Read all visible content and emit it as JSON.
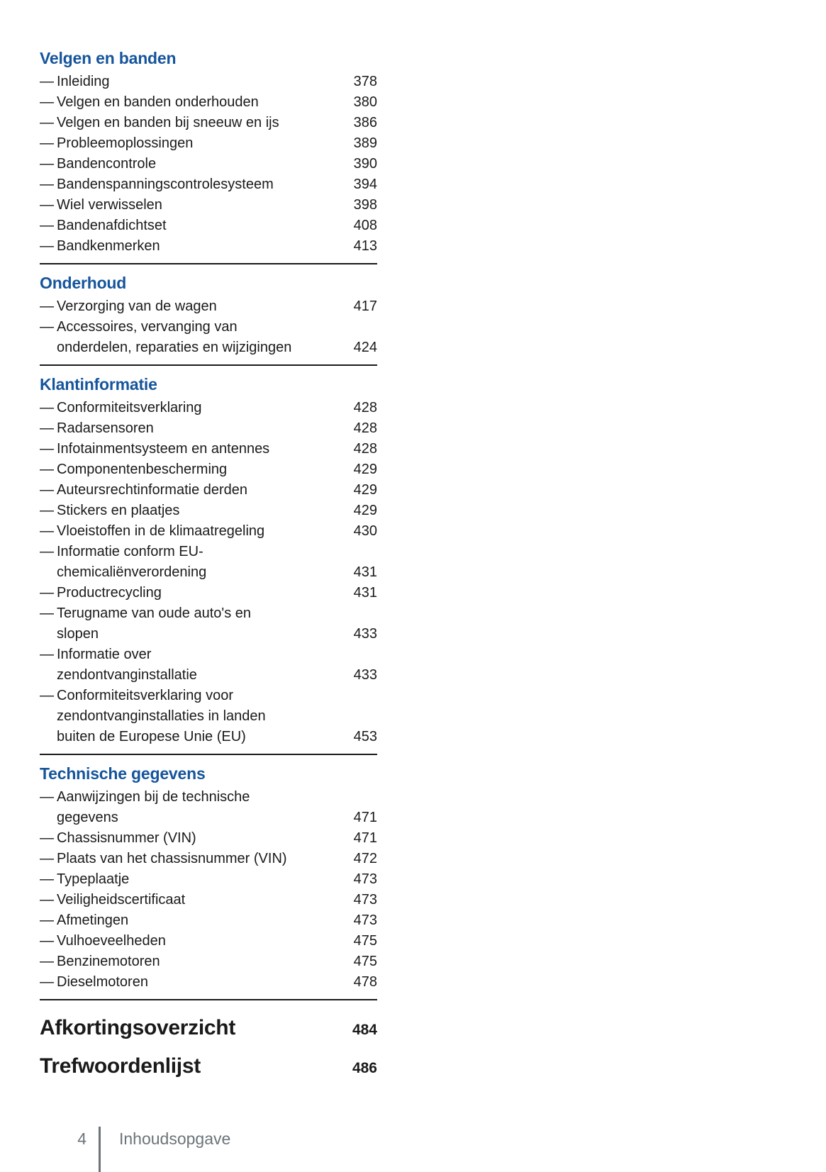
{
  "accent_color": "#15549c",
  "text_color": "#1a1a1a",
  "footer_color": "#6b7478",
  "list_marker": "—",
  "sections": [
    {
      "title": "Velgen en banden",
      "items": [
        {
          "label": "Inleiding",
          "page": "378"
        },
        {
          "label": "Velgen en banden onderhouden",
          "page": "380"
        },
        {
          "label": "Velgen en banden bij sneeuw en ijs",
          "page": "386"
        },
        {
          "label": "Probleemoplossingen",
          "page": "389"
        },
        {
          "label": "Bandencontrole",
          "page": "390"
        },
        {
          "label": "Bandenspanningscontrolesysteem",
          "page": "394"
        },
        {
          "label": "Wiel verwisselen",
          "page": "398"
        },
        {
          "label": "Bandenafdichtset",
          "page": "408"
        },
        {
          "label": "Bandkenmerken",
          "page": "413"
        }
      ]
    },
    {
      "title": "Onderhoud",
      "items": [
        {
          "label": "Verzorging van de wagen",
          "page": "417"
        },
        {
          "label": "Accessoires, vervanging van\nonderdelen, reparaties en wijzigingen",
          "page": "424"
        }
      ]
    },
    {
      "title": "Klantinformatie",
      "items": [
        {
          "label": "Conformiteitsverklaring",
          "page": "428"
        },
        {
          "label": "Radarsensoren",
          "page": "428"
        },
        {
          "label": "Infotainmentsysteem en antennes",
          "page": "428"
        },
        {
          "label": "Componentenbescherming",
          "page": "429"
        },
        {
          "label": "Auteursrechtinformatie derden",
          "page": "429"
        },
        {
          "label": "Stickers en plaatjes",
          "page": "429"
        },
        {
          "label": "Vloeistoffen in de klimaatregeling",
          "page": "430"
        },
        {
          "label": "Informatie conform EU-\nchemicaliënverordening",
          "page": "431"
        },
        {
          "label": "Productrecycling",
          "page": "431"
        },
        {
          "label": "Terugname van oude auto's en\nslopen",
          "page": "433"
        },
        {
          "label": "Informatie over\nzendontvanginstallatie",
          "page": "433"
        },
        {
          "label": "Conformiteitsverklaring voor\nzendontvanginstallaties in landen\nbuiten de Europese Unie (EU)",
          "page": "453"
        }
      ]
    },
    {
      "title": "Technische gegevens",
      "items": [
        {
          "label": "Aanwijzingen bij de technische\ngegevens",
          "page": "471"
        },
        {
          "label": "Chassisnummer (VIN)",
          "page": "471"
        },
        {
          "label": "Plaats van het chassisnummer (VIN)",
          "page": "472"
        },
        {
          "label": "Typeplaatje",
          "page": "473"
        },
        {
          "label": "Veiligheidscertificaat",
          "page": "473"
        },
        {
          "label": "Afmetingen",
          "page": "473"
        },
        {
          "label": "Vulhoeveelheden",
          "page": "475"
        },
        {
          "label": "Benzinemotoren",
          "page": "475"
        },
        {
          "label": "Dieselmotoren",
          "page": "478"
        }
      ]
    }
  ],
  "standalone_entries": [
    {
      "label": "Afkortingsoverzicht",
      "page": "484"
    },
    {
      "label": "Trefwoordenlijst",
      "page": "486"
    }
  ],
  "footer": {
    "page_number": "4",
    "section_label": "Inhoudsopgave"
  }
}
